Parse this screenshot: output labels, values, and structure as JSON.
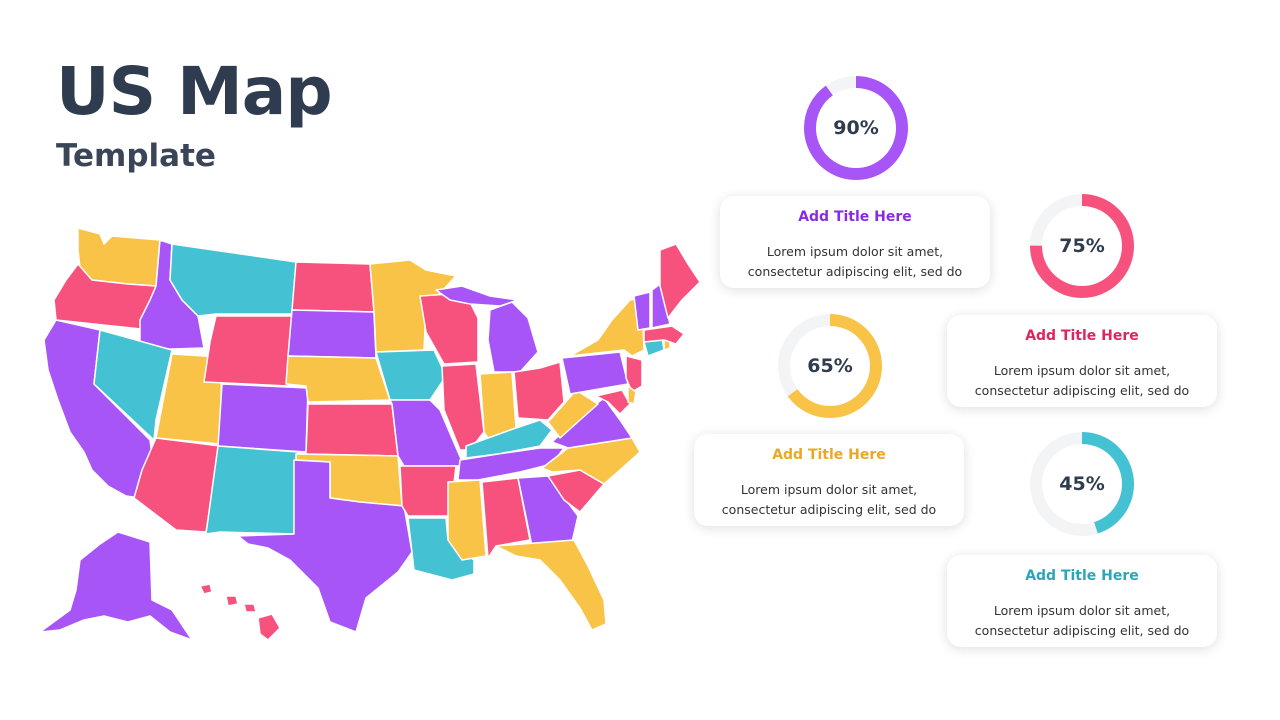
{
  "slide": {
    "title": "US Map",
    "subtitle": "Template"
  },
  "palette": {
    "purple": "#a855f7",
    "pink": "#f7527e",
    "yellow": "#f8c346",
    "teal": "#44c2d3",
    "track": "#f3f4f6"
  },
  "stats": [
    {
      "percent_label": "90%",
      "value": 90,
      "color": "#a855f7",
      "title": "Add Title Here",
      "title_color": "#8a2be2",
      "body_line1": "Lorem ipsum dolor sit amet,",
      "body_line2": "consectetur adipiscing elit, sed do"
    },
    {
      "percent_label": "75%",
      "value": 75,
      "color": "#f7527e",
      "title": "Add Title Here",
      "title_color": "#e0245e",
      "body_line1": "Lorem ipsum dolor sit amet,",
      "body_line2": "consectetur adipiscing elit, sed do"
    },
    {
      "percent_label": "65%",
      "value": 65,
      "color": "#f8c346",
      "title": "Add Title Here",
      "title_color": "#e9a825",
      "body_line1": "Lorem ipsum dolor sit amet,",
      "body_line2": "consectetur adipiscing elit, sed do"
    },
    {
      "percent_label": "45%",
      "value": 45,
      "color": "#44c2d3",
      "title": "Add Title Here",
      "title_color": "#2aa6b8",
      "body_line1": "Lorem ipsum dolor sit amet,",
      "body_line2": "consectetur adipiscing elit, sed do"
    }
  ]
}
